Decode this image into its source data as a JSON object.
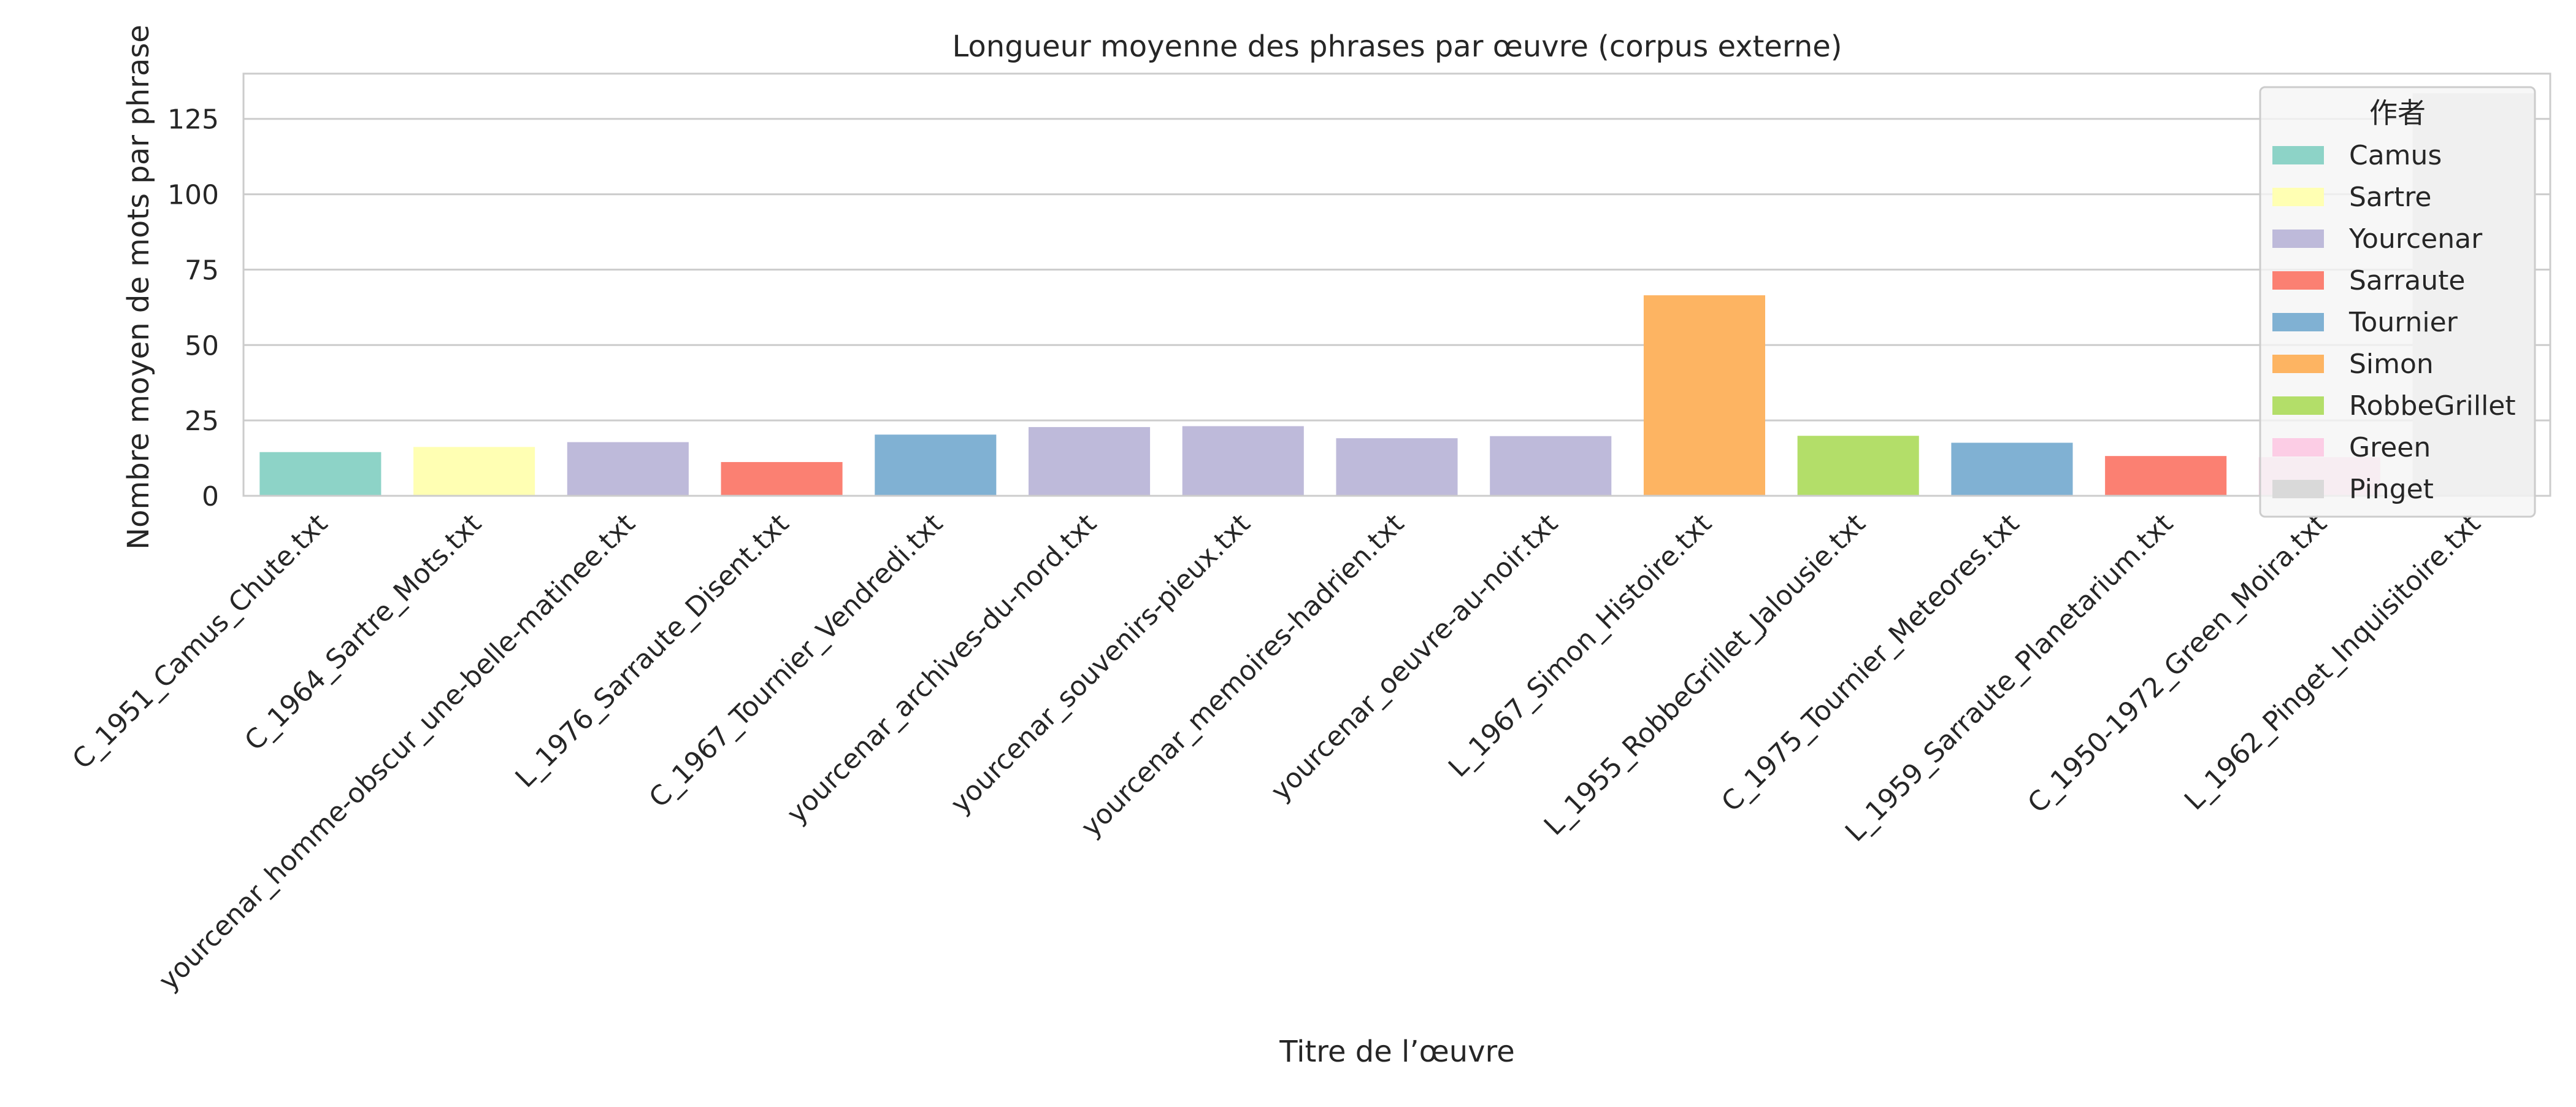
{
  "chart_data": {
    "type": "bar",
    "title": "Longueur moyenne des phrases par œuvre (corpus externe)",
    "xlabel": "Titre de l’œuvre",
    "ylabel": "Nombre moyen de mots par phrase",
    "ylim": [
      0,
      140
    ],
    "yticks": [
      0,
      25,
      50,
      75,
      100,
      125
    ],
    "grid": true,
    "legend_title": "作者",
    "legend_position": "top-right",
    "legend": [
      {
        "label": "Camus",
        "color": "#8dd3c7"
      },
      {
        "label": "Sartre",
        "color": "#ffffb3"
      },
      {
        "label": "Yourcenar",
        "color": "#bebada"
      },
      {
        "label": "Sarraute",
        "color": "#fb8072"
      },
      {
        "label": "Tournier",
        "color": "#80b1d3"
      },
      {
        "label": "Simon",
        "color": "#fdb462"
      },
      {
        "label": "RobbeGrillet",
        "color": "#b3de69"
      },
      {
        "label": "Green",
        "color": "#fccde5"
      },
      {
        "label": "Pinget",
        "color": "#d9d9d9"
      }
    ],
    "categories": [
      "C_1951_Camus_Chute.txt",
      "C_1964_Sartre_Mots.txt",
      "yourcenar_homme-obscur_une-belle-matinee.txt",
      "L_1976_Sarraute_Disent.txt",
      "C_1967_Tournier_Vendredi.txt",
      "yourcenar_archives-du-nord.txt",
      "yourcenar_souvenirs-pieux.txt",
      "yourcenar_memoires-hadrien.txt",
      "yourcenar_oeuvre-au-noir.txt",
      "L_1967_Simon_Histoire.txt",
      "L_1955_RobbeGrillet_Jalousie.txt",
      "C_1975_Tournier_Meteores.txt",
      "L_1959_Sarraute_Planetarium.txt",
      "C_1950-1972_Green_Moira.txt",
      "L_1962_Pinget_Inquisitoire.txt"
    ],
    "values": [
      14.5,
      16.2,
      17.8,
      11.2,
      20.3,
      22.8,
      23.1,
      19.1,
      19.8,
      66.5,
      19.9,
      17.6,
      13.2,
      12.8,
      133.5
    ],
    "authors": [
      "Camus",
      "Sartre",
      "Yourcenar",
      "Sarraute",
      "Tournier",
      "Yourcenar",
      "Yourcenar",
      "Yourcenar",
      "Yourcenar",
      "Simon",
      "RobbeGrillet",
      "Tournier",
      "Sarraute",
      "Green",
      "Pinget"
    ]
  }
}
